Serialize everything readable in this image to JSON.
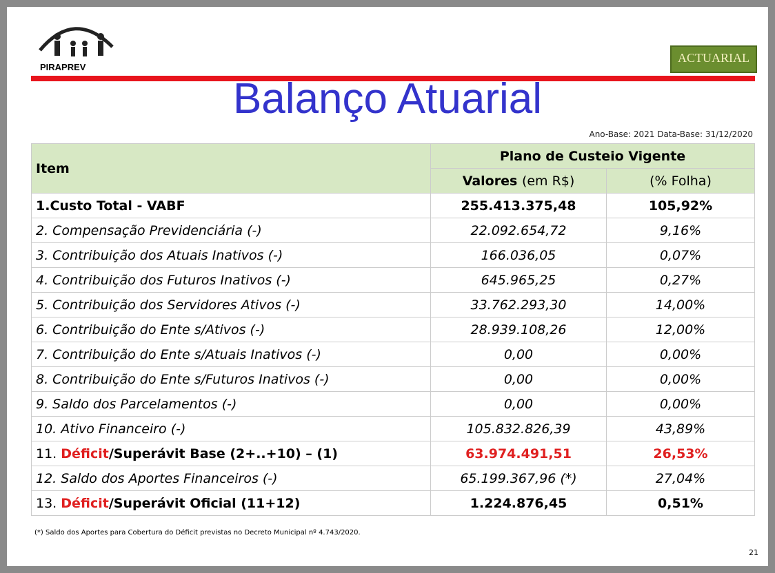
{
  "header": {
    "logo_left": "PIRAPREV",
    "logo_right": "ACTUARIAL",
    "title": "Balanço Atuarial",
    "subtitle": "Ano-Base: 2021 Data-Base: 31/12/2020"
  },
  "table": {
    "item_header": "Item",
    "group_header": "Plano de Custeio Vigente",
    "value_header": "Valores",
    "value_header_unit": "(em R$)",
    "percent_header": "(% Folha)",
    "rows": [
      {
        "item": "1.Custo Total - VABF",
        "value": "255.413.375,48",
        "percent": "105,92%"
      },
      {
        "item": "2. Compensação Previdenciária (-)",
        "value": "22.092.654,72",
        "percent": "9,16%"
      },
      {
        "item": "3. Contribuição dos Atuais Inativos (-)",
        "value": "166.036,05",
        "percent": "0,07%"
      },
      {
        "item": "4. Contribuição dos Futuros Inativos (-)",
        "value": "645.965,25",
        "percent": "0,27%"
      },
      {
        "item": "5. Contribuição dos Servidores Ativos (-)",
        "value": "33.762.293,30",
        "percent": "14,00%"
      },
      {
        "item": "6. Contribuição do Ente s/Ativos (-)",
        "value": "28.939.108,26",
        "percent": "12,00%"
      },
      {
        "item": "7. Contribuição do Ente s/Atuais Inativos (-)",
        "value": "0,00",
        "percent": "0,00%"
      },
      {
        "item": "8. Contribuição do Ente s/Futuros Inativos (-)",
        "value": "0,00",
        "percent": "0,00%"
      },
      {
        "item": "9. Saldo dos Parcelamentos (-)",
        "value": "0,00",
        "percent": "0,00%"
      },
      {
        "item": "10. Ativo Financeiro (-)",
        "value": "105.832.826,39",
        "percent": "43,89%"
      },
      {
        "item": [
          "11.",
          "Déficit",
          "/Superávit Base (2+..+10) – (1)"
        ],
        "value": "63.974.491,51",
        "percent": "26,53%"
      },
      {
        "item": "12. Saldo dos Aportes Financeiros (-)",
        "value": "65.199.367,96 (*)",
        "percent": "27,04%"
      },
      {
        "item": [
          "13.",
          "Déficit",
          "/Superávit Oficial (11+12)"
        ],
        "value": "1.224.876,45",
        "percent": "0,51%"
      }
    ]
  },
  "footnote": "(*) Saldo dos Aportes para Cobertura do Déficit previstas no Decreto Municipal nº 4.743/2020.",
  "page_number": "21"
}
